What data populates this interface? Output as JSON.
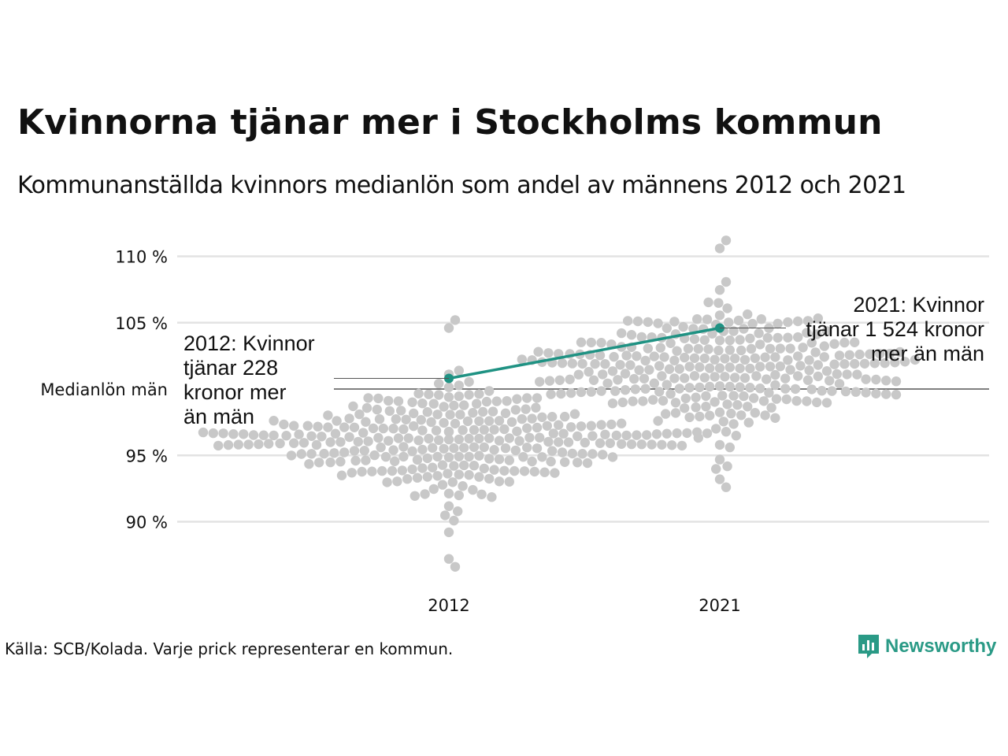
{
  "title": "Kvinnorna tjänar mer i Stockholms kommun",
  "subtitle": "Kommunanställda kvinnors medianlön som andel av männens 2012 och 2021",
  "source": "Källa: SCB/Kolada. Varje prick representerar en kommun.",
  "logo": {
    "text": "Newsworthy",
    "icon": "newsworthy-chart-icon",
    "color": "#2a9a86"
  },
  "colors": {
    "dots": "#c8c8c8",
    "highlight": "#1f9283",
    "grid": "#e3e3e3",
    "reference": "#333333"
  },
  "chart_data": {
    "type": "scatter",
    "style": "beeswarm",
    "title": "Kvinnorna tjänar mer i Stockholms kommun",
    "categories": [
      "2012",
      "2021"
    ],
    "y_ticks": [
      {
        "value": 90,
        "label": "90 %"
      },
      {
        "value": 95,
        "label": "95 %"
      },
      {
        "value": 105,
        "label": "105 %"
      },
      {
        "value": 110,
        "label": "110 %"
      }
    ],
    "ylim": [
      86,
      111.5
    ],
    "reference_line": {
      "value": 100,
      "label": "Medianlön män"
    },
    "grid": true,
    "highlight": {
      "name": "Stockholm",
      "points": [
        {
          "x": "2012",
          "y": 100.8
        },
        {
          "x": "2021",
          "y": 104.6
        }
      ]
    },
    "annotations": [
      {
        "x": "2012",
        "lines": [
          "2012: Kvinnor",
          "tjänar 228",
          "kronor mer",
          "än män"
        ]
      },
      {
        "x": "2021",
        "lines": [
          "2021: Kvinnor",
          "tjänar 1 524 kronor",
          "mer än män"
        ]
      }
    ],
    "distributions": [
      {
        "x": "2012",
        "n": 290,
        "median": 96.2,
        "spread": 2.0,
        "min": 86.6,
        "max": 105.2
      },
      {
        "x": "2021",
        "n": 290,
        "median": 101.6,
        "spread": 2.3,
        "min": 92.6,
        "max": 111.2
      }
    ]
  }
}
